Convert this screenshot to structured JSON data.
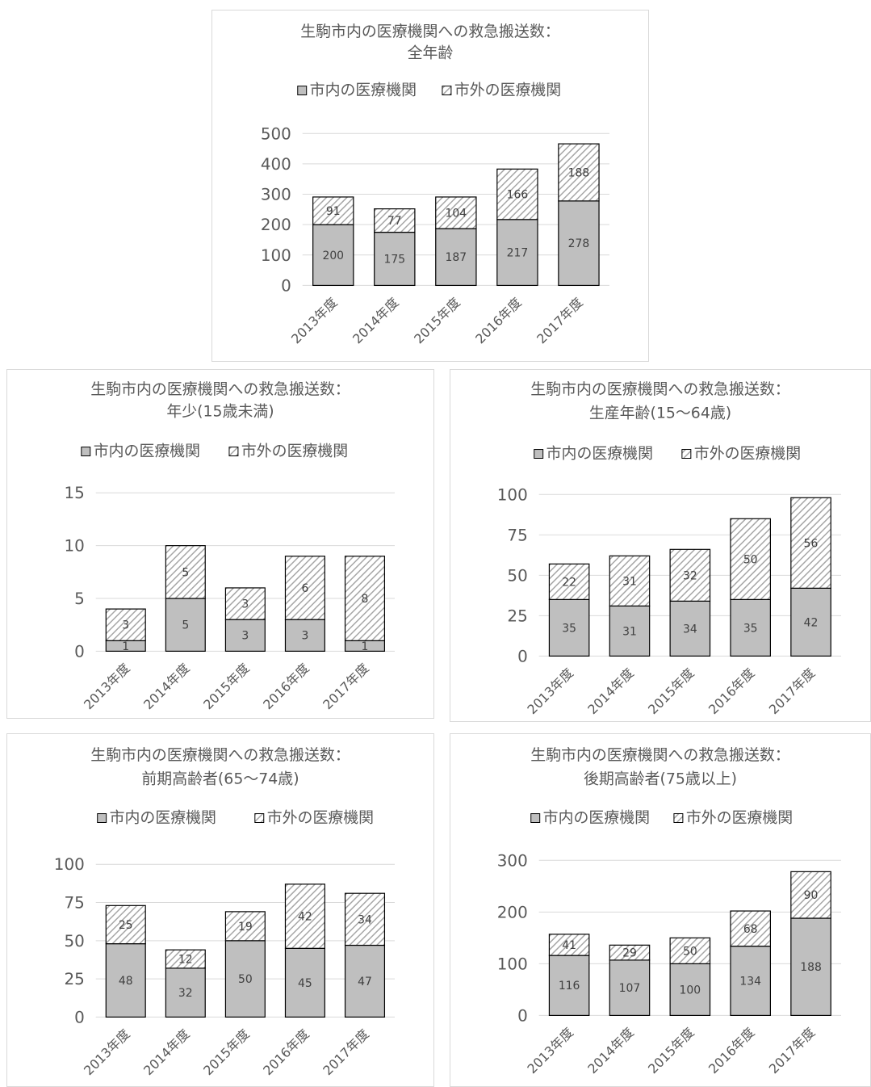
{
  "colors": {
    "inside": "#bfbfbf",
    "outside_hatch": "#a6a6a6",
    "border": "#000000",
    "grid": "#d9d9d9",
    "text": "#595959"
  },
  "chart_data": [
    {
      "type": "bar",
      "stacked": true,
      "title": [
        "生駒市内の医療機関への救急搬送数：",
        "全年齢"
      ],
      "categories": [
        "2013年度",
        "2014年度",
        "2015年度",
        "2016年度",
        "2017年度"
      ],
      "series": [
        {
          "name": "市内の医療機関",
          "values": [
            200,
            175,
            187,
            217,
            278
          ]
        },
        {
          "name": "市外の医療機関",
          "values": [
            91,
            77,
            104,
            166,
            188
          ]
        }
      ],
      "ylim": [
        0,
        500
      ],
      "yticks": [
        0,
        100,
        200,
        300,
        400,
        500
      ],
      "legend": "top",
      "grid": true
    },
    {
      "type": "bar",
      "stacked": true,
      "title": [
        "生駒市内の医療機関への救急搬送数：",
        "年少(15歳未満)"
      ],
      "categories": [
        "2013年度",
        "2014年度",
        "2015年度",
        "2016年度",
        "2017年度"
      ],
      "series": [
        {
          "name": "市内の医療機関",
          "values": [
            1,
            5,
            3,
            3,
            1
          ]
        },
        {
          "name": "市外の医療機関",
          "values": [
            3,
            5,
            3,
            6,
            8
          ]
        }
      ],
      "ylim": [
        0,
        15
      ],
      "yticks": [
        0,
        5,
        10,
        15
      ],
      "legend": "top",
      "grid": true
    },
    {
      "type": "bar",
      "stacked": true,
      "title": [
        "生駒市内の医療機関への救急搬送数：",
        "生産年齢(15～64歳)"
      ],
      "categories": [
        "2013年度",
        "2014年度",
        "2015年度",
        "2016年度",
        "2017年度"
      ],
      "series": [
        {
          "name": "市内の医療機関",
          "values": [
            35,
            31,
            34,
            35,
            42
          ]
        },
        {
          "name": "市外の医療機関",
          "values": [
            22,
            31,
            32,
            50,
            56
          ]
        }
      ],
      "ylim": [
        0,
        100
      ],
      "yticks": [
        0,
        25,
        50,
        75,
        100
      ],
      "legend": "top",
      "grid": true
    },
    {
      "type": "bar",
      "stacked": true,
      "title": [
        "生駒市内の医療機関への救急搬送数：",
        "前期高齢者(65～74歳)"
      ],
      "categories": [
        "2013年度",
        "2014年度",
        "2015年度",
        "2016年度",
        "2017年度"
      ],
      "series": [
        {
          "name": "市内の医療機関",
          "values": [
            48,
            32,
            50,
            45,
            47
          ]
        },
        {
          "name": "市外の医療機関",
          "values": [
            25,
            12,
            19,
            42,
            34
          ]
        }
      ],
      "ylim": [
        0,
        100
      ],
      "yticks": [
        0,
        25,
        50,
        75,
        100
      ],
      "legend": "top",
      "grid": true
    },
    {
      "type": "bar",
      "stacked": true,
      "title": [
        "生駒市内の医療機関への救急搬送数：",
        "後期高齢者(75歳以上)"
      ],
      "categories": [
        "2013年度",
        "2014年度",
        "2015年度",
        "2016年度",
        "2017年度"
      ],
      "series": [
        {
          "name": "市内の医療機関",
          "values": [
            116,
            107,
            100,
            134,
            188
          ]
        },
        {
          "name": "市外の医療機関",
          "values": [
            41,
            29,
            50,
            68,
            90
          ]
        }
      ],
      "ylim": [
        0,
        300
      ],
      "yticks": [
        0,
        100,
        200,
        300
      ],
      "legend": "top",
      "grid": true
    }
  ]
}
